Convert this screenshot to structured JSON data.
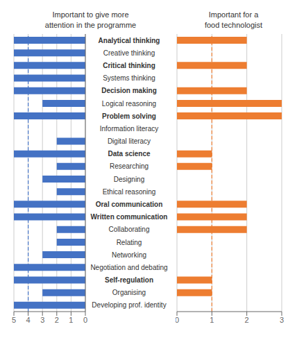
{
  "chart_data": [
    {
      "type": "bar",
      "orientation": "horizontal",
      "title": "Important to give more\nattention in the programme",
      "categories": [
        "Analytical thinking",
        "Creative thinking",
        "Critical thinking",
        "Systems thinking",
        "Decision making",
        "Logical reasoning",
        "Problem solving",
        "Information literacy",
        "Digital literacy",
        "Data science",
        "Researching",
        "Designing",
        "Ethical reasoning",
        "Oral communication",
        "Written communication",
        "Collaborating",
        "Relating",
        "Networking",
        "Negotiation and debating",
        "Self-regulation",
        "Organising",
        "Developing prof. identity"
      ],
      "bold_categories": [
        "Analytical thinking",
        "Critical thinking",
        "Decision making",
        "Problem solving",
        "Data science",
        "Oral communication",
        "Written communication",
        "Self-regulation"
      ],
      "values": [
        5,
        5,
        5,
        5,
        5,
        3,
        5,
        0,
        2,
        5,
        2,
        3,
        2,
        5,
        5,
        2,
        2,
        3,
        5,
        5,
        3,
        5
      ],
      "color": "#4472C4",
      "reference_x": 4,
      "xlim": [
        5,
        0
      ],
      "xticks": [
        5,
        4,
        3,
        2,
        1,
        0
      ],
      "grid": true
    },
    {
      "type": "bar",
      "orientation": "horizontal",
      "title": "Important for a\nfood technologist",
      "categories": [
        "Analytical thinking",
        "Creative thinking",
        "Critical thinking",
        "Systems thinking",
        "Decision making",
        "Logical reasoning",
        "Problem solving",
        "Information literacy",
        "Digital literacy",
        "Data science",
        "Researching",
        "Designing",
        "Ethical reasoning",
        "Oral communication",
        "Written communication",
        "Collaborating",
        "Relating",
        "Networking",
        "Negotiation and debating",
        "Self-regulation",
        "Organising",
        "Developing prof. identity"
      ],
      "values": [
        2,
        0,
        2,
        0,
        2,
        3,
        3,
        0,
        0,
        1,
        1,
        0,
        0,
        2,
        2,
        2,
        0,
        0,
        0,
        1,
        1,
        0
      ],
      "color": "#ED7D31",
      "reference_x": 1,
      "xlim": [
        0,
        3
      ],
      "xticks": [
        0,
        1,
        2,
        3
      ],
      "grid": true,
      "tick_labels": "x"
    }
  ]
}
